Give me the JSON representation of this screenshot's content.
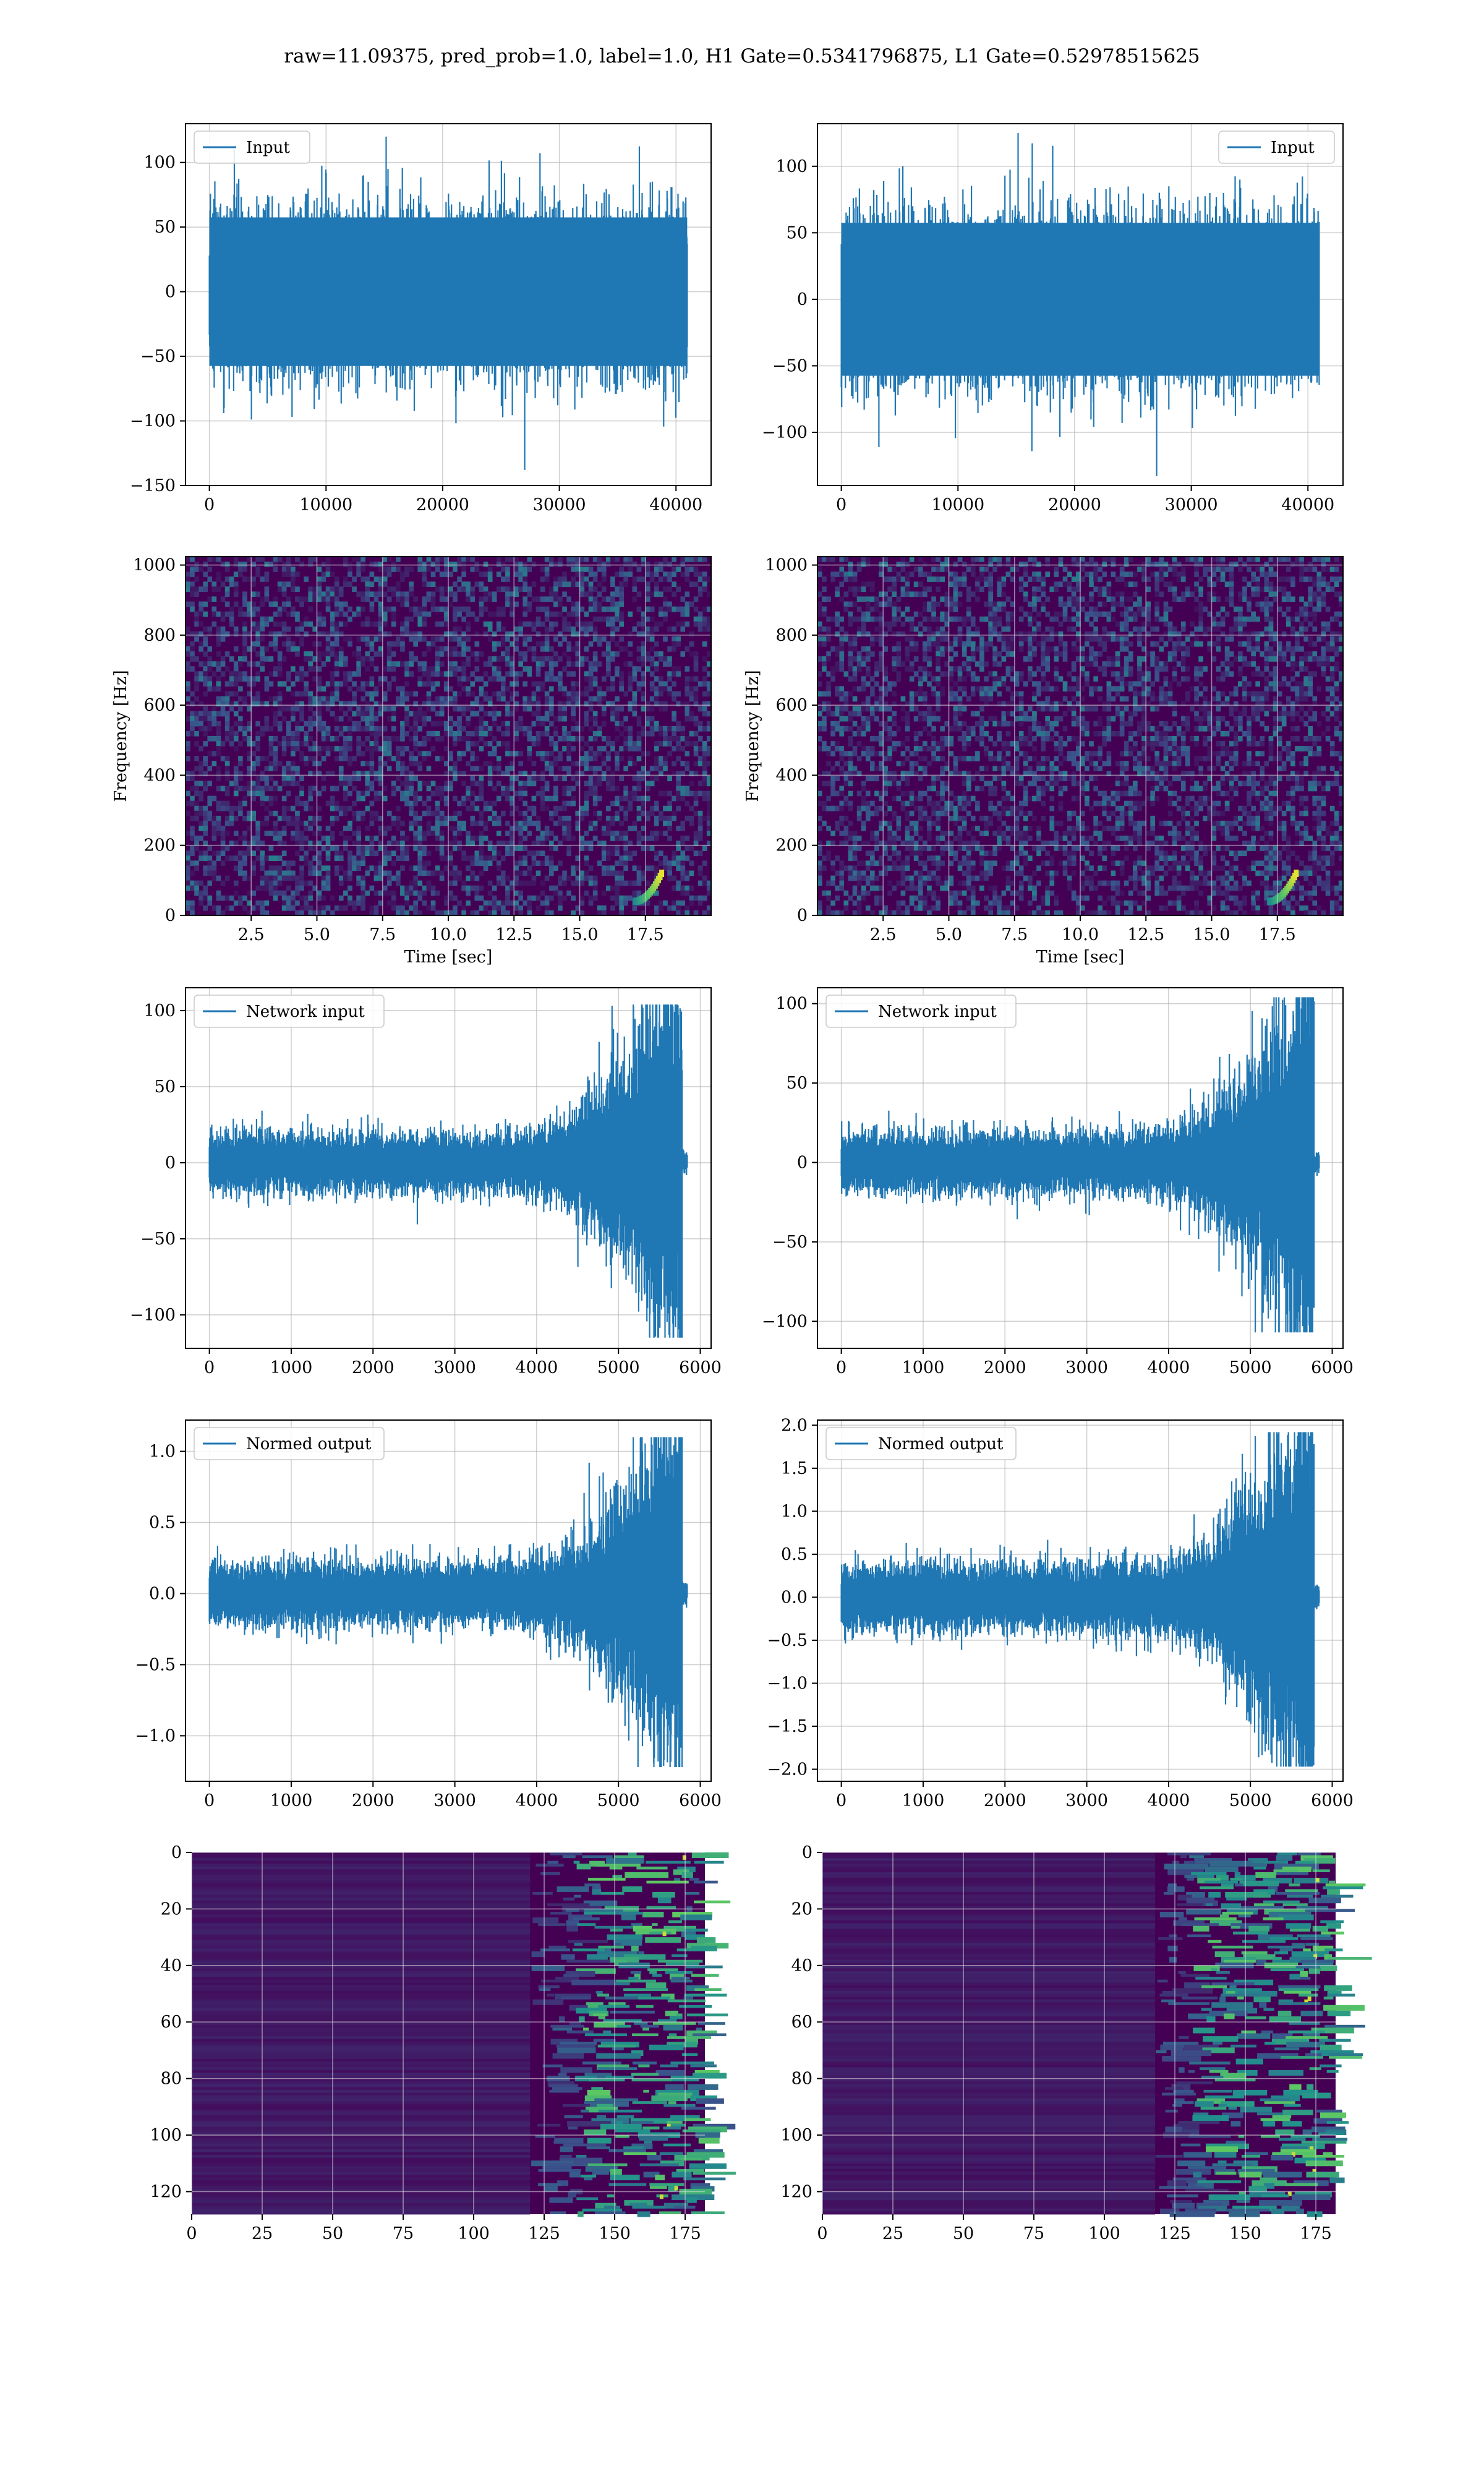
{
  "figure": {
    "title": "raw=11.09375, pred_prob=1.0, label=1.0, H1 Gate=0.5341796875, L1 Gate=0.52978515625"
  },
  "colors": {
    "line": "#1f77b4",
    "viridis_low": "#440154",
    "viridis_mid": "#21918c",
    "viridis_high": "#fde725",
    "grid": "#b0b0b0"
  },
  "chart_data": [
    {
      "id": "row1-left",
      "type": "line",
      "legend": "Input",
      "legend_pos": "top-left",
      "x_range": [
        0,
        40960
      ],
      "xlim": [
        -2048,
        43008
      ],
      "ylim": [
        -150,
        130
      ],
      "xticks": [
        0,
        10000,
        20000,
        30000,
        40000
      ],
      "yticks": [
        -150,
        -100,
        -50,
        0,
        50,
        100
      ],
      "ytick_labels": [
        "−150",
        "−100",
        "−50",
        "0",
        "50",
        "100"
      ],
      "signal": {
        "kind": "noise",
        "sigma": 25,
        "peak": 120,
        "trough": -138
      },
      "grid": true
    },
    {
      "id": "row1-right",
      "type": "line",
      "legend": "Input",
      "legend_pos": "top-right",
      "x_range": [
        0,
        40960
      ],
      "xlim": [
        -2048,
        43008
      ],
      "ylim": [
        -140,
        132
      ],
      "xticks": [
        0,
        10000,
        20000,
        30000,
        40000
      ],
      "yticks": [
        -100,
        -50,
        0,
        50,
        100
      ],
      "ytick_labels": [
        "−100",
        "−50",
        "0",
        "50",
        "100"
      ],
      "signal": {
        "kind": "noise",
        "sigma": 25,
        "peak": 125,
        "trough": -133
      },
      "grid": true
    },
    {
      "id": "row2-left",
      "type": "heatmap",
      "xlabel": "Time [sec]",
      "ylabel": "Frequency [Hz]",
      "xlim": [
        0,
        20
      ],
      "ylim": [
        0,
        1024
      ],
      "xticks": [
        2.5,
        5.0,
        7.5,
        10.0,
        12.5,
        15.0,
        17.5
      ],
      "xtick_labels": [
        "2.5",
        "5.0",
        "7.5",
        "10.0",
        "12.5",
        "15.0",
        "17.5"
      ],
      "yticks": [
        0,
        200,
        400,
        600,
        800,
        1000
      ],
      "chirp": {
        "t_merge": 18.1,
        "f_start": 40,
        "f_end": 120
      },
      "grid": true
    },
    {
      "id": "row2-right",
      "type": "heatmap",
      "xlabel": "Time [sec]",
      "ylabel": "Frequency [Hz]",
      "xlim": [
        0,
        20
      ],
      "ylim": [
        0,
        1024
      ],
      "xticks": [
        2.5,
        5.0,
        7.5,
        10.0,
        12.5,
        15.0,
        17.5
      ],
      "xtick_labels": [
        "2.5",
        "5.0",
        "7.5",
        "10.0",
        "12.5",
        "15.0",
        "17.5"
      ],
      "yticks": [
        0,
        200,
        400,
        600,
        800,
        1000
      ],
      "chirp": {
        "t_merge": 18.2,
        "f_start": 40,
        "f_end": 120
      },
      "grid": true
    },
    {
      "id": "row3-left",
      "type": "line",
      "legend": "Network input",
      "legend_pos": "top-left",
      "x_range": [
        0,
        5840
      ],
      "xlim": [
        -292,
        6132
      ],
      "ylim": [
        -122,
        115
      ],
      "xticks": [
        0,
        1000,
        2000,
        3000,
        4000,
        5000,
        6000
      ],
      "yticks": [
        -100,
        -50,
        0,
        50,
        100
      ],
      "ytick_labels": [
        "−100",
        "−50",
        "0",
        "50",
        "100"
      ],
      "signal": {
        "kind": "chirp",
        "base": 8,
        "grow_start": 3600,
        "end": 5780,
        "peak": 104,
        "trough": -115
      },
      "grid": true
    },
    {
      "id": "row3-right",
      "type": "line",
      "legend": "Network input",
      "legend_pos": "top-left",
      "x_range": [
        0,
        5840
      ],
      "xlim": [
        -292,
        6132
      ],
      "ylim": [
        -117,
        110
      ],
      "xticks": [
        0,
        1000,
        2000,
        3000,
        4000,
        5000,
        6000
      ],
      "yticks": [
        -100,
        -50,
        0,
        50,
        100
      ],
      "ytick_labels": [
        "−100",
        "−50",
        "0",
        "50",
        "100"
      ],
      "signal": {
        "kind": "chirp",
        "base": 8,
        "grow_start": 3600,
        "end": 5780,
        "peak": 104,
        "trough": -107
      },
      "grid": true
    },
    {
      "id": "row4-left",
      "type": "line",
      "legend": "Normed output",
      "legend_pos": "top-left",
      "x_range": [
        0,
        5840
      ],
      "xlim": [
        -292,
        6132
      ],
      "ylim": [
        -1.32,
        1.22
      ],
      "xticks": [
        0,
        1000,
        2000,
        3000,
        4000,
        5000,
        6000
      ],
      "yticks": [
        -1.0,
        -0.5,
        0.0,
        0.5,
        1.0
      ],
      "ytick_labels": [
        "−1.0",
        "−0.5",
        "0.0",
        "0.5",
        "1.0"
      ],
      "signal": {
        "kind": "chirp",
        "base": 0.09,
        "grow_start": 3600,
        "end": 5780,
        "peak": 1.1,
        "trough": -1.22
      },
      "grid": true
    },
    {
      "id": "row4-right",
      "type": "line",
      "legend": "Normed output",
      "legend_pos": "top-left",
      "x_range": [
        0,
        5840
      ],
      "xlim": [
        -292,
        6132
      ],
      "ylim": [
        -2.14,
        2.06
      ],
      "xticks": [
        0,
        1000,
        2000,
        3000,
        4000,
        5000,
        6000
      ],
      "yticks": [
        -2.0,
        -1.5,
        -1.0,
        -0.5,
        0.0,
        0.5,
        1.0,
        1.5,
        2.0
      ],
      "ytick_labels": [
        "−2.0",
        "−1.5",
        "−1.0",
        "−0.5",
        "0.0",
        "0.5",
        "1.0",
        "1.5",
        "2.0"
      ],
      "signal": {
        "kind": "chirp",
        "base": 0.16,
        "grow_start": 3600,
        "end": 5780,
        "peak": 1.92,
        "trough": -1.97
      },
      "grid": true
    },
    {
      "id": "row5-left",
      "type": "heatmap",
      "xlim": [
        0,
        182
      ],
      "ylim": [
        128,
        0
      ],
      "xticks": [
        0,
        25,
        50,
        75,
        100,
        125,
        150,
        175
      ],
      "yticks": [
        0,
        20,
        40,
        60,
        80,
        100,
        120
      ],
      "activation": {
        "onset": 120,
        "strong_from": 135
      },
      "grid": true
    },
    {
      "id": "row5-right",
      "type": "heatmap",
      "xlim": [
        0,
        182
      ],
      "ylim": [
        128,
        0
      ],
      "xticks": [
        0,
        25,
        50,
        75,
        100,
        125,
        150,
        175
      ],
      "yticks": [
        0,
        20,
        40,
        60,
        80,
        100,
        120
      ],
      "activation": {
        "onset": 118,
        "strong_from": 130
      },
      "grid": true
    }
  ]
}
